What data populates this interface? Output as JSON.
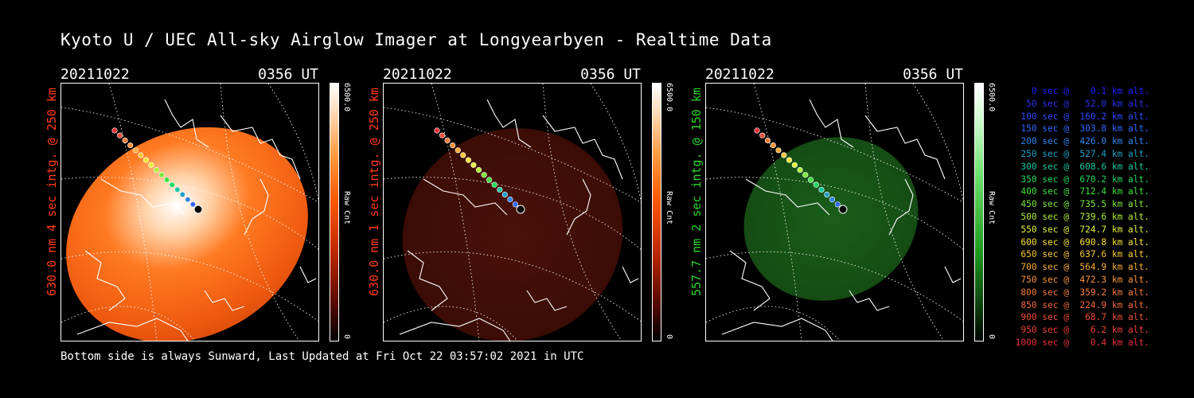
{
  "title": "Kyoto U / UEC All-sky Airglow Imager at Longyearbyen - Realtime Data",
  "panels": [
    {
      "date": "20211022",
      "time": "0356 UT",
      "side_label": "630.0 nm 4 sec intg. @ 250 km",
      "label_color": "#ff3b1a",
      "cbar_max": "6500.0",
      "cbar_min": "0",
      "cbar_unit": "Raw Cnt",
      "colormap": "red"
    },
    {
      "date": "20211022",
      "time": "0356 UT",
      "side_label": "630.0 nm 1 sec intg. @ 250 km",
      "label_color": "#ff3b1a",
      "cbar_max": "6500.0",
      "cbar_min": "0",
      "cbar_unit": "Raw Cnt",
      "colormap": "red"
    },
    {
      "date": "20211022",
      "time": "0356 UT",
      "side_label": "557.7 nm 2 sec intg. @ 150 km",
      "label_color": "#29d629",
      "cbar_max": "6500.0",
      "cbar_min": "0",
      "cbar_unit": "Raw Cnt",
      "colormap": "green"
    }
  ],
  "footer": "Bottom side is always Sunward, Last Updated at Fri Oct 22 03:57:02 2021 in UTC",
  "legend": [
    {
      "text": "   0 sec @    0.1 km alt.",
      "color": "#2020ff"
    },
    {
      "text": "  50 sec @   52.0 km alt.",
      "color": "#3030f0"
    },
    {
      "text": " 100 sec @  160.2 km alt.",
      "color": "#2f4bff"
    },
    {
      "text": " 150 sec @  303.8 km alt.",
      "color": "#2f68ff"
    },
    {
      "text": " 200 sec @  426.0 km alt.",
      "color": "#2f86ef"
    },
    {
      "text": " 250 sec @  527.4 km alt.",
      "color": "#1fa0c8"
    },
    {
      "text": " 300 sec @  608.6 km alt.",
      "color": "#18c8a0"
    },
    {
      "text": " 350 sec @  670.2 km alt.",
      "color": "#1ed860"
    },
    {
      "text": " 400 sec @  712.4 km alt.",
      "color": "#3be03b"
    },
    {
      "text": " 450 sec @  735.5 km alt.",
      "color": "#7ce83a"
    },
    {
      "text": " 500 sec @  739.6 km alt.",
      "color": "#b0ee3a"
    },
    {
      "text": " 550 sec @  724.7 km alt.",
      "color": "#e2f03a"
    },
    {
      "text": " 600 sec @  690.8 km alt.",
      "color": "#f7e33a"
    },
    {
      "text": " 650 sec @  637.6 km alt.",
      "color": "#f8c83a"
    },
    {
      "text": " 700 sec @  564.9 km alt.",
      "color": "#f8ad3a"
    },
    {
      "text": " 750 sec @  472.3 km alt.",
      "color": "#f8953a"
    },
    {
      "text": " 800 sec @  359.2 km alt.",
      "color": "#f57a3a"
    },
    {
      "text": " 850 sec @  224.9 km alt.",
      "color": "#f0663a"
    },
    {
      "text": " 900 sec @   68.7 km alt.",
      "color": "#ee503a"
    },
    {
      "text": " 950 sec @    6.2 km alt.",
      "color": "#ec403a"
    },
    {
      "text": "1000 sec @    0.4 km alt.",
      "color": "#e8303a"
    }
  ]
}
